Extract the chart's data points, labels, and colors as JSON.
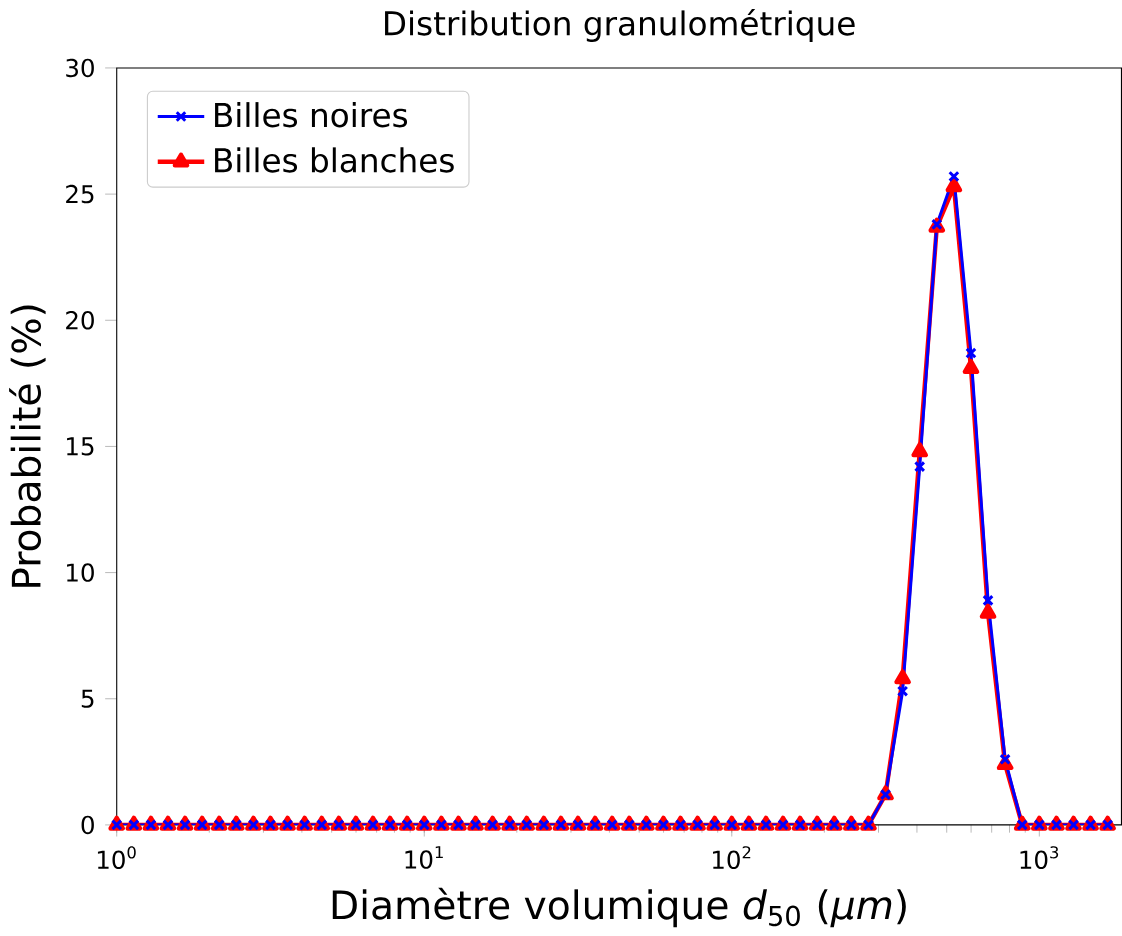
{
  "chart_data": {
    "type": "line",
    "title": "Distribution granulométrique",
    "xlabel": "Diamètre volumique *d*$_{50}$ (*μm*)",
    "ylabel": "Probabilité (%)",
    "log": "x",
    "x": [
      1,
      1.137,
      1.292,
      1.468,
      1.668,
      1.896,
      2.154,
      2.448,
      2.783,
      3.162,
      3.594,
      4.084,
      4.642,
      5.275,
      5.995,
      6.813,
      7.743,
      8.799,
      10,
      11.37,
      12.92,
      14.68,
      16.68,
      18.96,
      21.54,
      24.48,
      27.83,
      31.62,
      35.94,
      40.84,
      46.42,
      52.75,
      59.95,
      68.13,
      77.43,
      87.99,
      100,
      113.7,
      129.2,
      146.8,
      166.8,
      189.6,
      215.4,
      244.8,
      278.3,
      316.2,
      359.4,
      408.4,
      464.2,
      527.5,
      599.5,
      681.3,
      774.3,
      879.9,
      1000,
      1137,
      1292,
      1468,
      1668
    ],
    "series": [
      {
        "name": "Billes noires",
        "color": "#0000ff",
        "marker": "cross",
        "values": [
          0,
          0,
          0,
          0,
          0,
          0,
          0,
          0,
          0,
          0,
          0,
          0,
          0,
          0,
          0,
          0,
          0,
          0,
          0,
          0,
          0,
          0,
          0,
          0,
          0,
          0,
          0,
          0,
          0,
          0,
          0,
          0,
          0,
          0,
          0,
          0,
          0,
          0,
          0,
          0,
          0,
          0,
          0,
          0,
          0,
          1.2,
          5.3,
          14.2,
          23.8,
          25.7,
          18.7,
          8.9,
          2.6,
          0,
          0,
          0,
          0,
          0,
          0
        ]
      },
      {
        "name": "Billes blanches",
        "color": "#ff0000",
        "marker": "triangle",
        "values": [
          0,
          0,
          0,
          0,
          0,
          0,
          0,
          0,
          0,
          0,
          0,
          0,
          0,
          0,
          0,
          0,
          0,
          0,
          0,
          0,
          0,
          0,
          0,
          0,
          0,
          0,
          0,
          0,
          0,
          0,
          0,
          0,
          0,
          0,
          0,
          0,
          0,
          0,
          0,
          0,
          0,
          0,
          0,
          0,
          0,
          1.2,
          5.8,
          14.8,
          23.7,
          25.3,
          18.1,
          8.4,
          2.4,
          0,
          0,
          0,
          0,
          0,
          0
        ]
      }
    ],
    "xlim": [
      1,
      1850
    ],
    "xticks": [
      {
        "value": 1,
        "label": "10$^{0}$"
      },
      {
        "value": 10,
        "label": "10$^{1}$"
      },
      {
        "value": 100,
        "label": "10$^{2}$"
      },
      {
        "value": 1000,
        "label": "10$^{3}$"
      }
    ],
    "ylim": [
      0,
      30
    ],
    "yticks": [
      0,
      5,
      10,
      15,
      20,
      25,
      30
    ],
    "grid": false,
    "legend": "top left"
  }
}
